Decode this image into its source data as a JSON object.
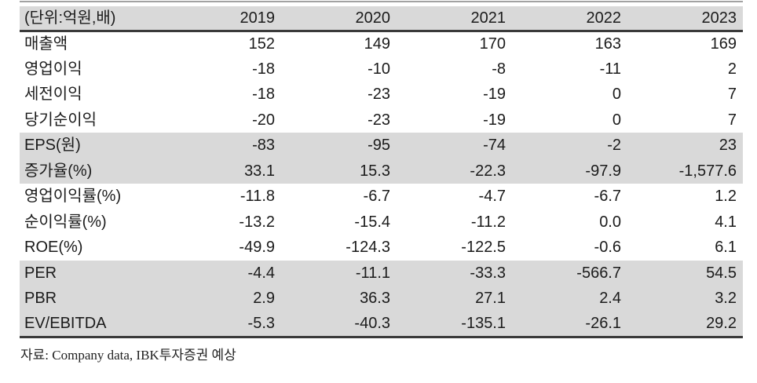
{
  "table": {
    "unit_label": "(단위:억원,배)",
    "columns": [
      "2019",
      "2020",
      "2021",
      "2022",
      "2023"
    ],
    "rows": [
      {
        "label": "매출액",
        "values": [
          "152",
          "149",
          "170",
          "163",
          "169"
        ],
        "shaded": false
      },
      {
        "label": "영업이익",
        "values": [
          "-18",
          "-10",
          "-8",
          "-11",
          "2"
        ],
        "shaded": false
      },
      {
        "label": "세전이익",
        "values": [
          "-18",
          "-23",
          "-19",
          "0",
          "7"
        ],
        "shaded": false
      },
      {
        "label": "당기순이익",
        "values": [
          "-20",
          "-23",
          "-19",
          "0",
          "7"
        ],
        "shaded": false
      },
      {
        "label": "EPS(원)",
        "values": [
          "-83",
          "-95",
          "-74",
          "-2",
          "23"
        ],
        "shaded": true
      },
      {
        "label": "증가율(%)",
        "values": [
          "33.1",
          "15.3",
          "-22.3",
          "-97.9",
          "-1,577.6"
        ],
        "shaded": true
      },
      {
        "label": "영업이익률(%)",
        "values": [
          "-11.8",
          "-6.7",
          "-4.7",
          "-6.7",
          "1.2"
        ],
        "shaded": false
      },
      {
        "label": "순이익률(%)",
        "values": [
          "-13.2",
          "-15.4",
          "-11.2",
          "0.0",
          "4.1"
        ],
        "shaded": false
      },
      {
        "label": "ROE(%)",
        "values": [
          "-49.9",
          "-124.3",
          "-122.5",
          "-0.6",
          "6.1"
        ],
        "shaded": false
      },
      {
        "label": "PER",
        "values": [
          "-4.4",
          "-11.1",
          "-33.3",
          "-566.7",
          "54.5"
        ],
        "shaded": true
      },
      {
        "label": "PBR",
        "values": [
          "2.9",
          "36.3",
          "27.1",
          "2.4",
          "3.2"
        ],
        "shaded": true
      },
      {
        "label": "EV/EBITDA",
        "values": [
          "-5.3",
          "-40.3",
          "-135.1",
          "-26.1",
          "29.2"
        ],
        "shaded": true
      }
    ]
  },
  "footer": {
    "source": "자료: Company data, IBK투자증권 예상"
  },
  "colors": {
    "band": "#d9d9d9",
    "border_dark": "#3a3a3a",
    "rule_top": "#a2a2a2",
    "text": "#1b1b1b"
  }
}
